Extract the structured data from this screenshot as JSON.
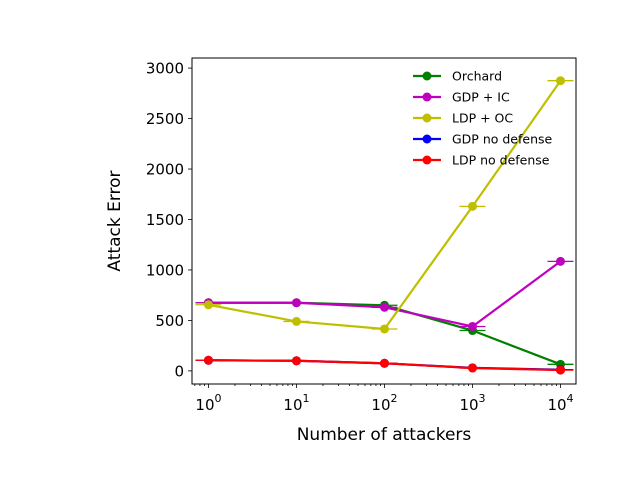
{
  "chart_data": {
    "type": "line",
    "xlabel": "Number of attackers",
    "ylabel": "Attack Error",
    "x_scale": "log",
    "x": [
      1,
      10,
      100,
      1000,
      10000
    ],
    "x_tick_labels": [
      {
        "base": "10",
        "exp": "0"
      },
      {
        "base": "10",
        "exp": "1"
      },
      {
        "base": "10",
        "exp": "2"
      },
      {
        "base": "10",
        "exp": "3"
      },
      {
        "base": "10",
        "exp": "4"
      }
    ],
    "ylim": [
      -130,
      3100
    ],
    "y_ticks": [
      0,
      500,
      1000,
      1500,
      2000,
      2500,
      3000
    ],
    "grid": false,
    "legend_position": "top-right",
    "series": [
      {
        "name": "Orchard",
        "color": "#008000",
        "values": [
          675,
          675,
          650,
          400,
          65
        ]
      },
      {
        "name": "GDP + IC",
        "color": "#bf00bf",
        "values": [
          675,
          675,
          630,
          440,
          1085
        ]
      },
      {
        "name": "LDP + OC",
        "color": "#bfbf00",
        "values": [
          655,
          490,
          415,
          1630,
          2875
        ]
      },
      {
        "name": "GDP no defense",
        "color": "#0000ff",
        "values": [
          105,
          100,
          75,
          30,
          12
        ]
      },
      {
        "name": "LDP no defense",
        "color": "#ff0000",
        "values": [
          105,
          100,
          75,
          28,
          8
        ]
      }
    ]
  }
}
